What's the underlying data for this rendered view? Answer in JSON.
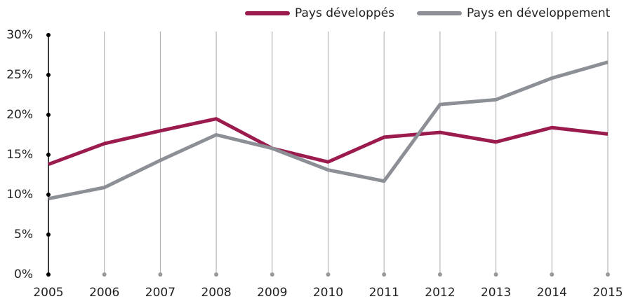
{
  "chart_data": {
    "type": "line",
    "x": [
      2005,
      2006,
      2007,
      2008,
      2009,
      2010,
      2011,
      2012,
      2013,
      2014,
      2015
    ],
    "series": [
      {
        "name": "Pays développés",
        "color": "#9b1b4f",
        "values": [
          13.8,
          16.4,
          18.0,
          19.5,
          15.8,
          14.1,
          17.2,
          17.8,
          16.6,
          18.4,
          17.6
        ]
      },
      {
        "name": "Pays en développement",
        "color": "#8c9096",
        "values": [
          9.5,
          10.9,
          14.3,
          17.5,
          15.8,
          13.1,
          11.7,
          21.3,
          21.9,
          24.6,
          26.6
        ]
      }
    ],
    "xlim": [
      2005,
      2015
    ],
    "xticks": [
      2005,
      2006,
      2007,
      2008,
      2009,
      2010,
      2011,
      2012,
      2013,
      2014,
      2015
    ],
    "ylim": [
      0,
      30
    ],
    "yticks": [
      {
        "value": 0,
        "label": "0%"
      },
      {
        "value": 5,
        "label": "5%"
      },
      {
        "value": 10,
        "label": "10%"
      },
      {
        "value": 15,
        "label": "15%"
      },
      {
        "value": 20,
        "label": "20%"
      },
      {
        "value": 25,
        "label": "25%"
      },
      {
        "value": 30,
        "label": "30%"
      }
    ],
    "grid": true,
    "legend": "top-right"
  }
}
